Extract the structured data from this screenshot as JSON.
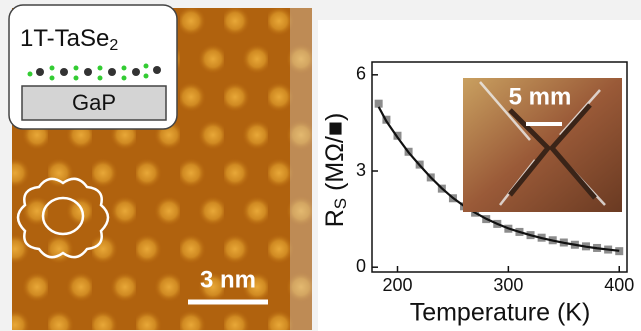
{
  "stm_panel": {
    "sample_label": {
      "text": "1T-TaSe",
      "subscript": "2"
    },
    "substrate_label": "GaP",
    "scale_bar_label": "3 nm"
  },
  "chart_data": {
    "type": "line",
    "x_label": "Temperature (K)",
    "y_label": {
      "text": "R",
      "subscript": "S",
      "unit": " (MΩ/■)"
    },
    "annotation": "5 mm",
    "x": [
      183,
      190,
      200,
      210,
      220,
      230,
      240,
      250,
      260,
      270,
      280,
      290,
      300,
      310,
      320,
      330,
      340,
      350,
      360,
      370,
      380,
      390,
      400
    ],
    "series": [
      {
        "mode": "markers",
        "color": "#8c8c8c",
        "values": [
          5.1,
          4.6,
          4.1,
          3.6,
          3.2,
          2.8,
          2.45,
          2.15,
          1.9,
          1.7,
          1.5,
          1.35,
          1.2,
          1.1,
          1.0,
          0.92,
          0.84,
          0.77,
          0.7,
          0.65,
          0.6,
          0.55,
          0.5
        ]
      },
      {
        "mode": "line",
        "color": "#111111",
        "values": [
          5.0,
          4.55,
          4.05,
          3.58,
          3.18,
          2.8,
          2.46,
          2.16,
          1.91,
          1.7,
          1.51,
          1.35,
          1.21,
          1.1,
          1.0,
          0.91,
          0.83,
          0.76,
          0.7,
          0.64,
          0.59,
          0.55,
          0.51
        ]
      }
    ],
    "xlim": [
      177,
      407
    ],
    "ylim": [
      -0.15,
      6.4
    ],
    "xticks": [
      200,
      300,
      400
    ],
    "yticks": [
      0,
      3,
      6
    ]
  }
}
